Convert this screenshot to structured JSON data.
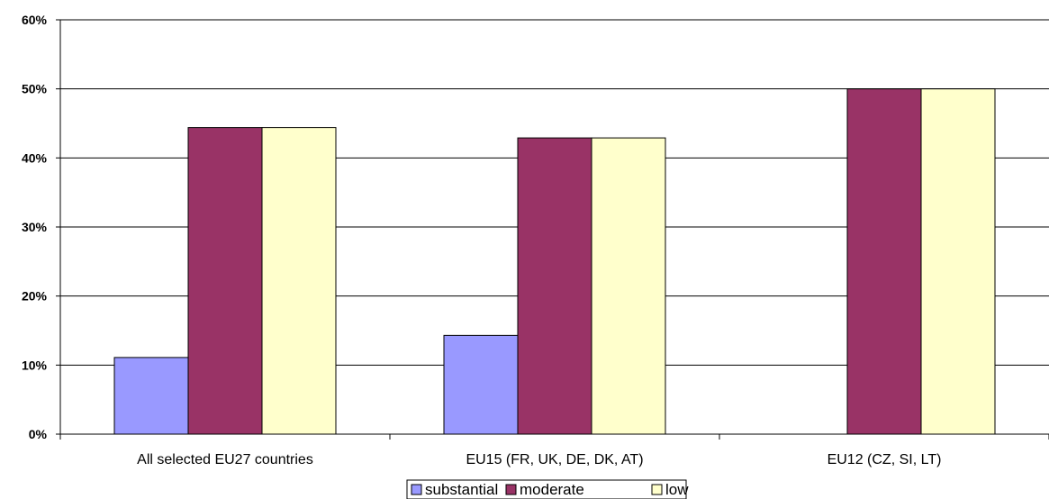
{
  "chart_data": {
    "type": "bar",
    "categories": [
      "All selected EU27 countries",
      "EU15 (FR, UK, DE, DK, AT)",
      "EU12 (CZ, SI, LT)"
    ],
    "series": [
      {
        "name": "substantial",
        "values": [
          11.1,
          14.3,
          0
        ],
        "color": "#9999ff"
      },
      {
        "name": "moderate",
        "values": [
          44.4,
          42.9,
          50
        ],
        "color": "#993366"
      },
      {
        "name": "low",
        "values": [
          44.4,
          42.9,
          50
        ],
        "color": "#ffffcc"
      }
    ],
    "ylim": [
      0,
      60
    ],
    "yticks": [
      "0%",
      "10%",
      "20%",
      "30%",
      "40%",
      "50%",
      "60%"
    ],
    "grid": true,
    "legend_position": "bottom"
  }
}
